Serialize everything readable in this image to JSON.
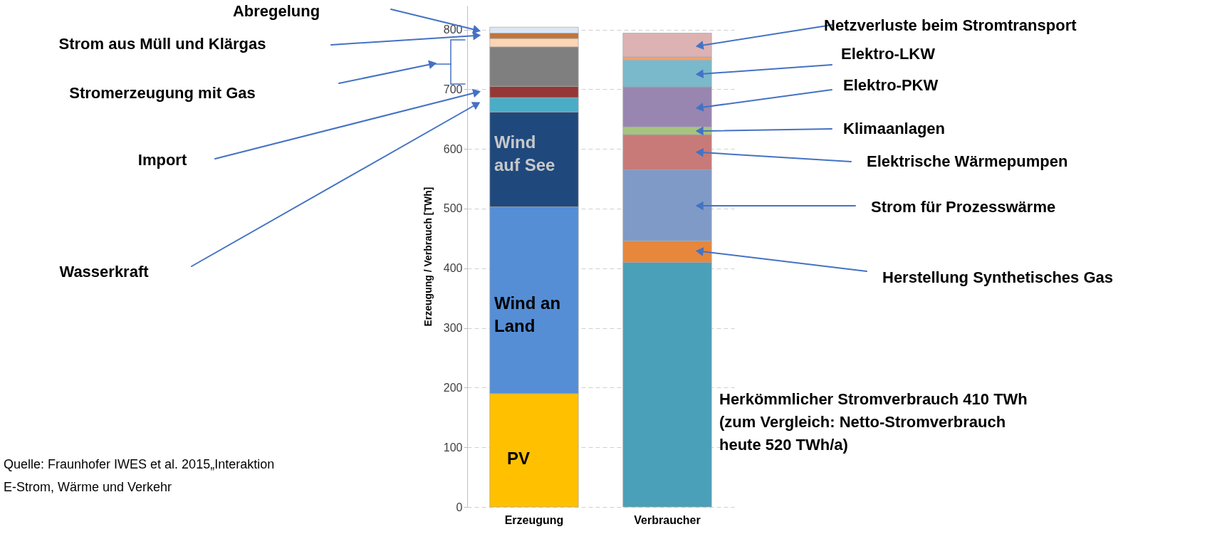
{
  "chart_data": {
    "type": "bar",
    "stacked": true,
    "categories": [
      "Erzeugung",
      "Verbraucher"
    ],
    "ylabel": "Erzeugung / Verbrauch [TWh]",
    "ylim": [
      0,
      840
    ],
    "yticks": [
      0,
      100,
      200,
      300,
      400,
      500,
      600,
      700,
      800
    ],
    "grid": "y",
    "legend": false,
    "series": [
      {
        "color": "#ffc000",
        "values": [
          190,
          null
        ]
      },
      {
        "color": "#558ed5",
        "values": [
          313,
          null
        ]
      },
      {
        "color": "#1f497d",
        "values": [
          159,
          null
        ]
      },
      {
        "color": "#4bacc6",
        "values": [
          24,
          null
        ]
      },
      {
        "color": "#953735",
        "values": [
          19,
          null
        ]
      },
      {
        "color": "#7f7f7f",
        "values": [
          66,
          null
        ]
      },
      {
        "color": "#fcd5b5",
        "values": [
          14,
          null
        ]
      },
      {
        "color": "#c0753a",
        "values": [
          9,
          null
        ]
      },
      {
        "color": "#dce6f2",
        "values": [
          10,
          null
        ]
      },
      {
        "color": "#4aa0b8",
        "values": [
          null,
          410
        ]
      },
      {
        "color": "#e6873c",
        "values": [
          null,
          36
        ]
      },
      {
        "color": "#7f9ac6",
        "values": [
          null,
          119
        ]
      },
      {
        "color": "#c87a78",
        "values": [
          null,
          59
        ]
      },
      {
        "color": "#a6c47f",
        "values": [
          null,
          13
        ]
      },
      {
        "color": "#9886b0",
        "values": [
          null,
          67
        ]
      },
      {
        "color": "#7ab8cc",
        "values": [
          null,
          45
        ]
      },
      {
        "color": "#f0a36e",
        "values": [
          null,
          5
        ]
      },
      {
        "color": "#ddb2b2",
        "values": [
          null,
          40
        ]
      }
    ],
    "annotations": [
      "Abregelung",
      "Strom aus Müll und Klärgas",
      "Stromerzeugung mit Gas",
      "Import",
      "Wasserkraft",
      "Wind auf See",
      "Wind an Land",
      "PV",
      "Netzverluste beim Stromtransport",
      "Elektro-LKW",
      "Elektro-PKW",
      "Klimaanlagen",
      "Elektrische Wärmepumpen",
      "Strom für Prozesswärme",
      "Herstellung Synthetisches Gas",
      "Herkömmlicher Stromverbrauch 410 TWh (zum Vergleich: Netto-Stromverbrauch heute 520 TWh/a)",
      "Quelle: Fraunhofer IWES et al. 2015„Interaktion E-Strom, Wärme und Verkehr"
    ]
  }
}
